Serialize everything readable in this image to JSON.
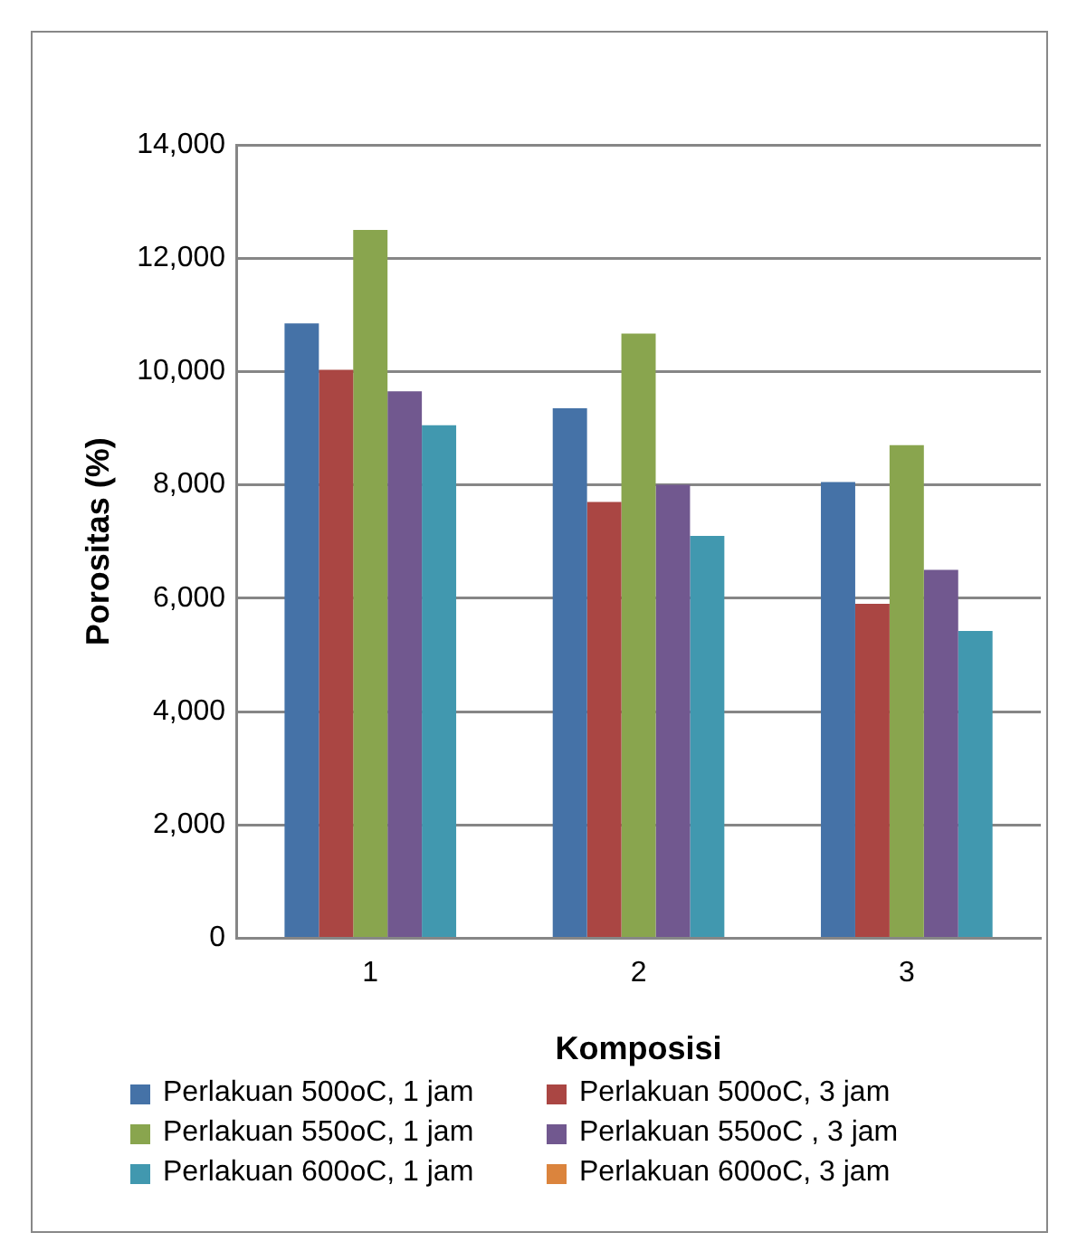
{
  "chart_data": {
    "type": "bar",
    "xlabel": "Komposisi",
    "ylabel": "Porositas (%)",
    "categories": [
      "1",
      "2",
      "3"
    ],
    "series": [
      {
        "name": "Perlakuan 500oC, 1 jam",
        "color": "#4572a7",
        "values": [
          10850,
          9350,
          8050
        ]
      },
      {
        "name": "Perlakuan 500oC, 3 jam",
        "color": "#aa4643",
        "values": [
          10030,
          7700,
          5900
        ]
      },
      {
        "name": "Perlakuan 550oC, 1 jam",
        "color": "#89a54e",
        "values": [
          12500,
          10670,
          8700
        ]
      },
      {
        "name": "Perlakuan 550oC , 3 jam",
        "color": "#71588f",
        "values": [
          9650,
          8000,
          6500
        ]
      },
      {
        "name": "Perlakuan 600oC, 1 jam",
        "color": "#4198af",
        "values": [
          9050,
          7100,
          5420
        ]
      },
      {
        "name": "Perlakuan 600oC, 3 jam",
        "color": "#db843d",
        "values": [
          null,
          null,
          null
        ]
      }
    ],
    "ylim": [
      0,
      14000
    ],
    "yticks": [
      0,
      {
        "value": 2000,
        "label": "2,000"
      },
      {
        "value": 4000,
        "label": "4,000"
      },
      {
        "value": 6000,
        "label": "6,000"
      },
      {
        "value": 8000,
        "label": "8,000"
      },
      {
        "value": 10000,
        "label": "10,000"
      },
      {
        "value": 12000,
        "label": "12,000"
      },
      {
        "value": 14000,
        "label": "14,000"
      }
    ],
    "grid": "y",
    "legend": "bottom"
  }
}
